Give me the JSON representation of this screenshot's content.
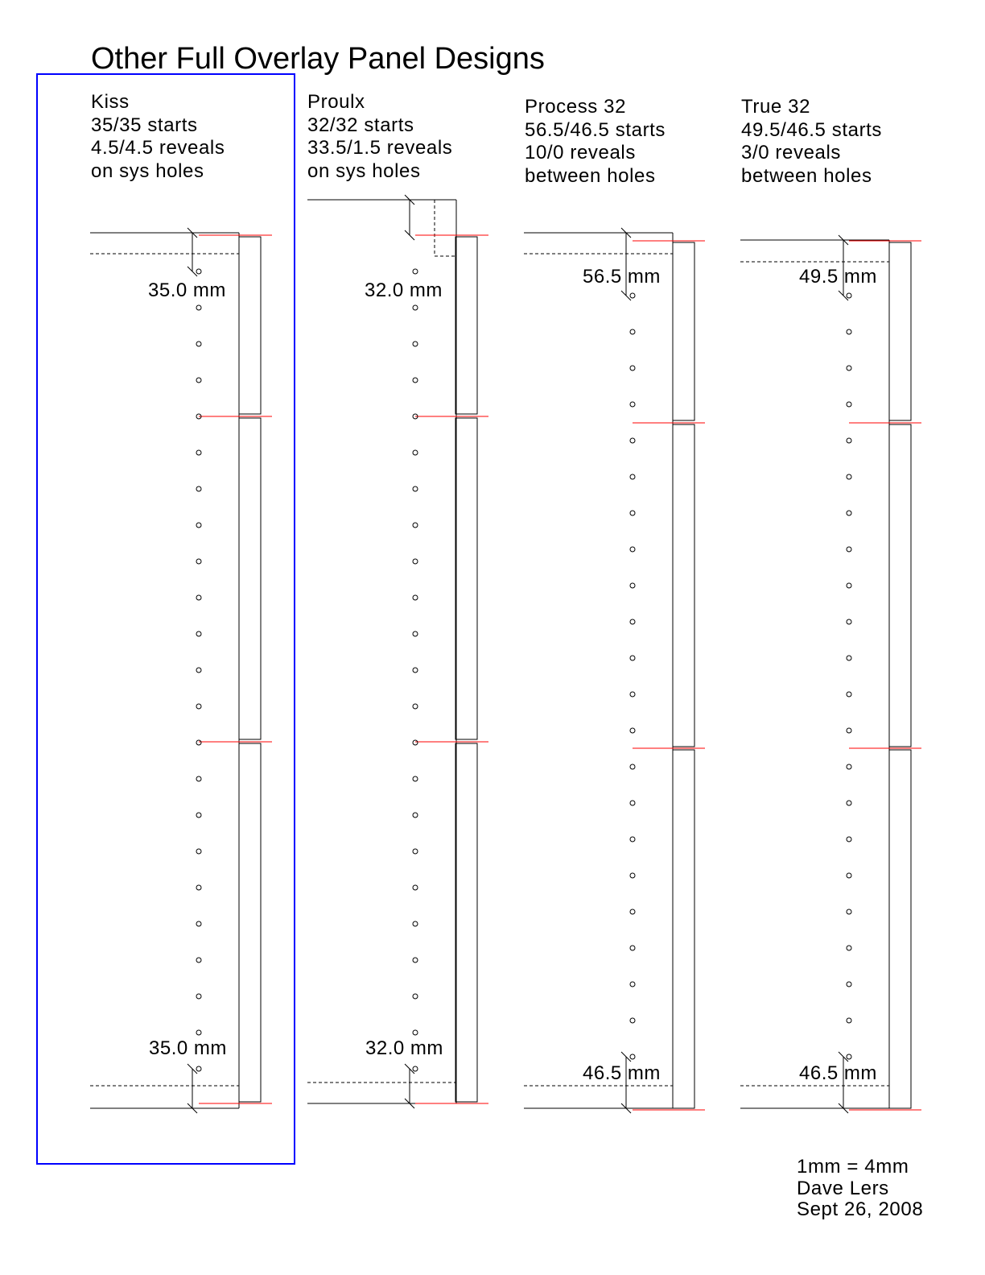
{
  "title": "Other Full Overlay Panel Designs",
  "selected_design": "Kiss",
  "designs": [
    {
      "name": "Kiss",
      "starts": "35/35 starts",
      "reveals": "4.5/4.5 reveals",
      "hole_position": "on sys holes",
      "top_dimension": "35.0 mm",
      "bottom_dimension": "35.0 mm"
    },
    {
      "name": "Proulx",
      "starts": "32/32 starts",
      "reveals": "33.5/1.5 reveals",
      "hole_position": "on sys holes",
      "top_dimension": "32.0 mm",
      "bottom_dimension": "32.0 mm"
    },
    {
      "name": "Process 32",
      "starts": "56.5/46.5 starts",
      "reveals": "10/0 reveals",
      "hole_position": "between holes",
      "top_dimension": "56.5 mm",
      "bottom_dimension": "46.5 mm"
    },
    {
      "name": "True 32",
      "starts": "49.5/46.5 starts",
      "reveals": "3/0 reveals",
      "hole_position": "between holes",
      "top_dimension": "49.5 mm",
      "bottom_dimension": "46.5 mm"
    }
  ],
  "footer": {
    "scale": "1mm = 4mm",
    "author": "Dave Lers",
    "date": "Sept 26, 2008"
  },
  "colors": {
    "line": "#000000",
    "reveal_marker": "#ff0000",
    "selection": "#0000ff"
  }
}
